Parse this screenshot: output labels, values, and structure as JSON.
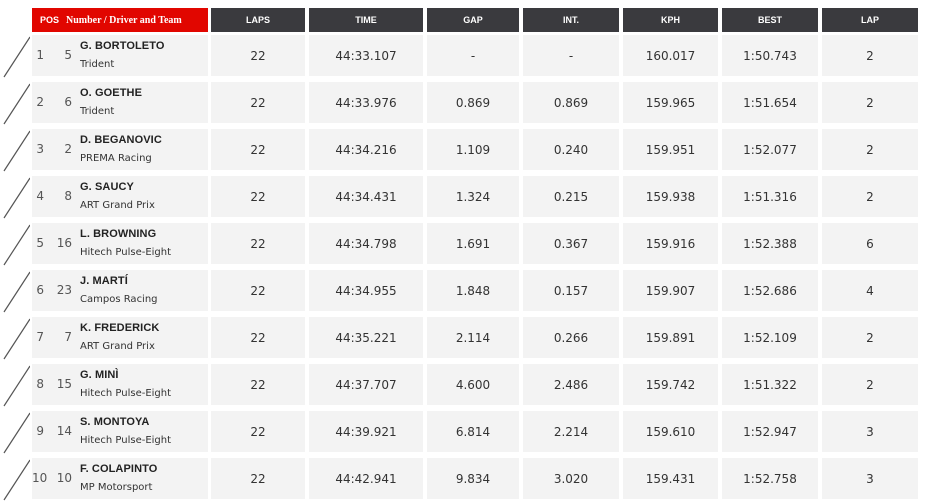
{
  "header": {
    "pos": "POS",
    "number_driver_team": "Number / Driver and Team",
    "laps": "LAPS",
    "time": "TIME",
    "gap": "GAP",
    "int": "INT.",
    "kph": "KPH",
    "best": "BEST",
    "lap": "LAP"
  },
  "rows": [
    {
      "pos": "1",
      "num": "5",
      "driver": "G. BORTOLETO",
      "team": "Trident",
      "laps": "22",
      "time": "44:33.107",
      "gap": "-",
      "int": "-",
      "kph": "160.017",
      "best": "1:50.743",
      "lap": "2"
    },
    {
      "pos": "2",
      "num": "6",
      "driver": "O. GOETHE",
      "team": "Trident",
      "laps": "22",
      "time": "44:33.976",
      "gap": "0.869",
      "int": "0.869",
      "kph": "159.965",
      "best": "1:51.654",
      "lap": "2"
    },
    {
      "pos": "3",
      "num": "2",
      "driver": "D. BEGANOVIC",
      "team": "PREMA Racing",
      "laps": "22",
      "time": "44:34.216",
      "gap": "1.109",
      "int": "0.240",
      "kph": "159.951",
      "best": "1:52.077",
      "lap": "2"
    },
    {
      "pos": "4",
      "num": "8",
      "driver": "G. SAUCY",
      "team": "ART Grand Prix",
      "laps": "22",
      "time": "44:34.431",
      "gap": "1.324",
      "int": "0.215",
      "kph": "159.938",
      "best": "1:51.316",
      "lap": "2"
    },
    {
      "pos": "5",
      "num": "16",
      "driver": "L. BROWNING",
      "team": "Hitech Pulse-Eight",
      "laps": "22",
      "time": "44:34.798",
      "gap": "1.691",
      "int": "0.367",
      "kph": "159.916",
      "best": "1:52.388",
      "lap": "6"
    },
    {
      "pos": "6",
      "num": "23",
      "driver": "J. MARTÍ",
      "team": "Campos Racing",
      "laps": "22",
      "time": "44:34.955",
      "gap": "1.848",
      "int": "0.157",
      "kph": "159.907",
      "best": "1:52.686",
      "lap": "4"
    },
    {
      "pos": "7",
      "num": "7",
      "driver": "K. FREDERICK",
      "team": "ART Grand Prix",
      "laps": "22",
      "time": "44:35.221",
      "gap": "2.114",
      "int": "0.266",
      "kph": "159.891",
      "best": "1:52.109",
      "lap": "2"
    },
    {
      "pos": "8",
      "num": "15",
      "driver": "G. MINÌ",
      "team": "Hitech Pulse-Eight",
      "laps": "22",
      "time": "44:37.707",
      "gap": "4.600",
      "int": "2.486",
      "kph": "159.742",
      "best": "1:51.322",
      "lap": "2"
    },
    {
      "pos": "9",
      "num": "14",
      "driver": "S. MONTOYA",
      "team": "Hitech Pulse-Eight",
      "laps": "22",
      "time": "44:39.921",
      "gap": "6.814",
      "int": "2.214",
      "kph": "159.610",
      "best": "1:52.947",
      "lap": "3"
    },
    {
      "pos": "10",
      "num": "10",
      "driver": "F. COLAPINTO",
      "team": "MP Motorsport",
      "laps": "22",
      "time": "44:42.941",
      "gap": "9.834",
      "int": "3.020",
      "kph": "159.431",
      "best": "1:52.758",
      "lap": "3"
    }
  ]
}
